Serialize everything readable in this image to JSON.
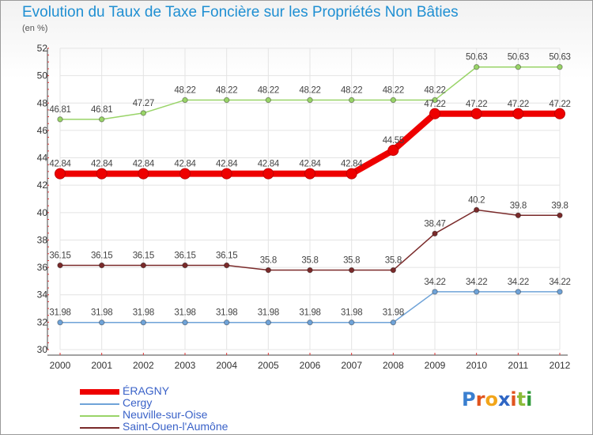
{
  "title": "Evolution du Taux de Taxe Foncière sur les Propriétés Non Bâties",
  "subtitle": "(en %)",
  "logo": {
    "letters": [
      {
        "ch": "P",
        "color": "#3a7fd0"
      },
      {
        "ch": "r",
        "color": "#e0541e"
      },
      {
        "ch": "o",
        "color": "#f2a51a"
      },
      {
        "ch": "x",
        "color": "#2f66c4"
      },
      {
        "ch": "i",
        "color": "#e0541e"
      },
      {
        "ch": "t",
        "color": "#8cbc3a"
      },
      {
        "ch": "i",
        "color": "#2f9a3a"
      }
    ]
  },
  "chart_data": {
    "type": "line",
    "title": "Evolution du Taux de Taxe Foncière sur les Propriétés Non Bâties",
    "ylabel": "(en %)",
    "x": [
      "2000",
      "2001",
      "2002",
      "2003",
      "2004",
      "2005",
      "2006",
      "2007",
      "2008",
      "2009",
      "2010",
      "2011",
      "2012"
    ],
    "ylim": [
      30,
      52
    ],
    "yticks": [
      "30",
      "32",
      "34",
      "36",
      "38",
      "40",
      "42",
      "44",
      "46",
      "48",
      "50",
      "52"
    ],
    "grid": true,
    "legend_position": "bottom-left",
    "series": [
      {
        "name": "ÉRAGNY",
        "color": "#ee0000",
        "values": [
          42.84,
          42.84,
          42.84,
          42.84,
          42.84,
          42.84,
          42.84,
          42.84,
          44.55,
          47.22,
          47.22,
          47.22,
          47.22
        ],
        "labels": [
          "42.84",
          "42.84",
          "42.84",
          "42.84",
          "42.84",
          "42.84",
          "42.84",
          "42.84",
          "44.55",
          "47.22",
          "47.22",
          "47.22",
          "47.22"
        ]
      },
      {
        "name": "Cergy",
        "color": "#6fa3d8",
        "values": [
          31.98,
          31.98,
          31.98,
          31.98,
          31.98,
          31.98,
          31.98,
          31.98,
          31.98,
          34.22,
          34.22,
          34.22,
          34.22
        ],
        "labels": [
          "31.98",
          "31.98",
          "31.98",
          "31.98",
          "31.98",
          "31.98",
          "31.98",
          "31.98",
          "31.98",
          "34.22",
          "34.22",
          "34.22",
          "34.22"
        ]
      },
      {
        "name": "Neuville-sur-Oise",
        "color": "#99d468",
        "values": [
          46.81,
          46.81,
          47.27,
          48.22,
          48.22,
          48.22,
          48.22,
          48.22,
          48.22,
          48.22,
          50.63,
          50.63,
          50.63
        ],
        "labels": [
          "46.81",
          "46.81",
          "47.27",
          "48.22",
          "48.22",
          "48.22",
          "48.22",
          "48.22",
          "48.22",
          "48.22",
          "50.63",
          "50.63",
          "50.63"
        ]
      },
      {
        "name": "Saint-Ouen-l'Aumône",
        "color": "#7a2a2a",
        "values": [
          36.15,
          36.15,
          36.15,
          36.15,
          36.15,
          35.8,
          35.8,
          35.8,
          35.8,
          38.47,
          40.2,
          39.8,
          39.8
        ],
        "labels": [
          "36.15",
          "36.15",
          "36.15",
          "36.15",
          "36.15",
          "35.8",
          "35.8",
          "35.8",
          "35.8",
          "38.47",
          "40.2",
          "39.8",
          "39.8"
        ]
      }
    ]
  }
}
